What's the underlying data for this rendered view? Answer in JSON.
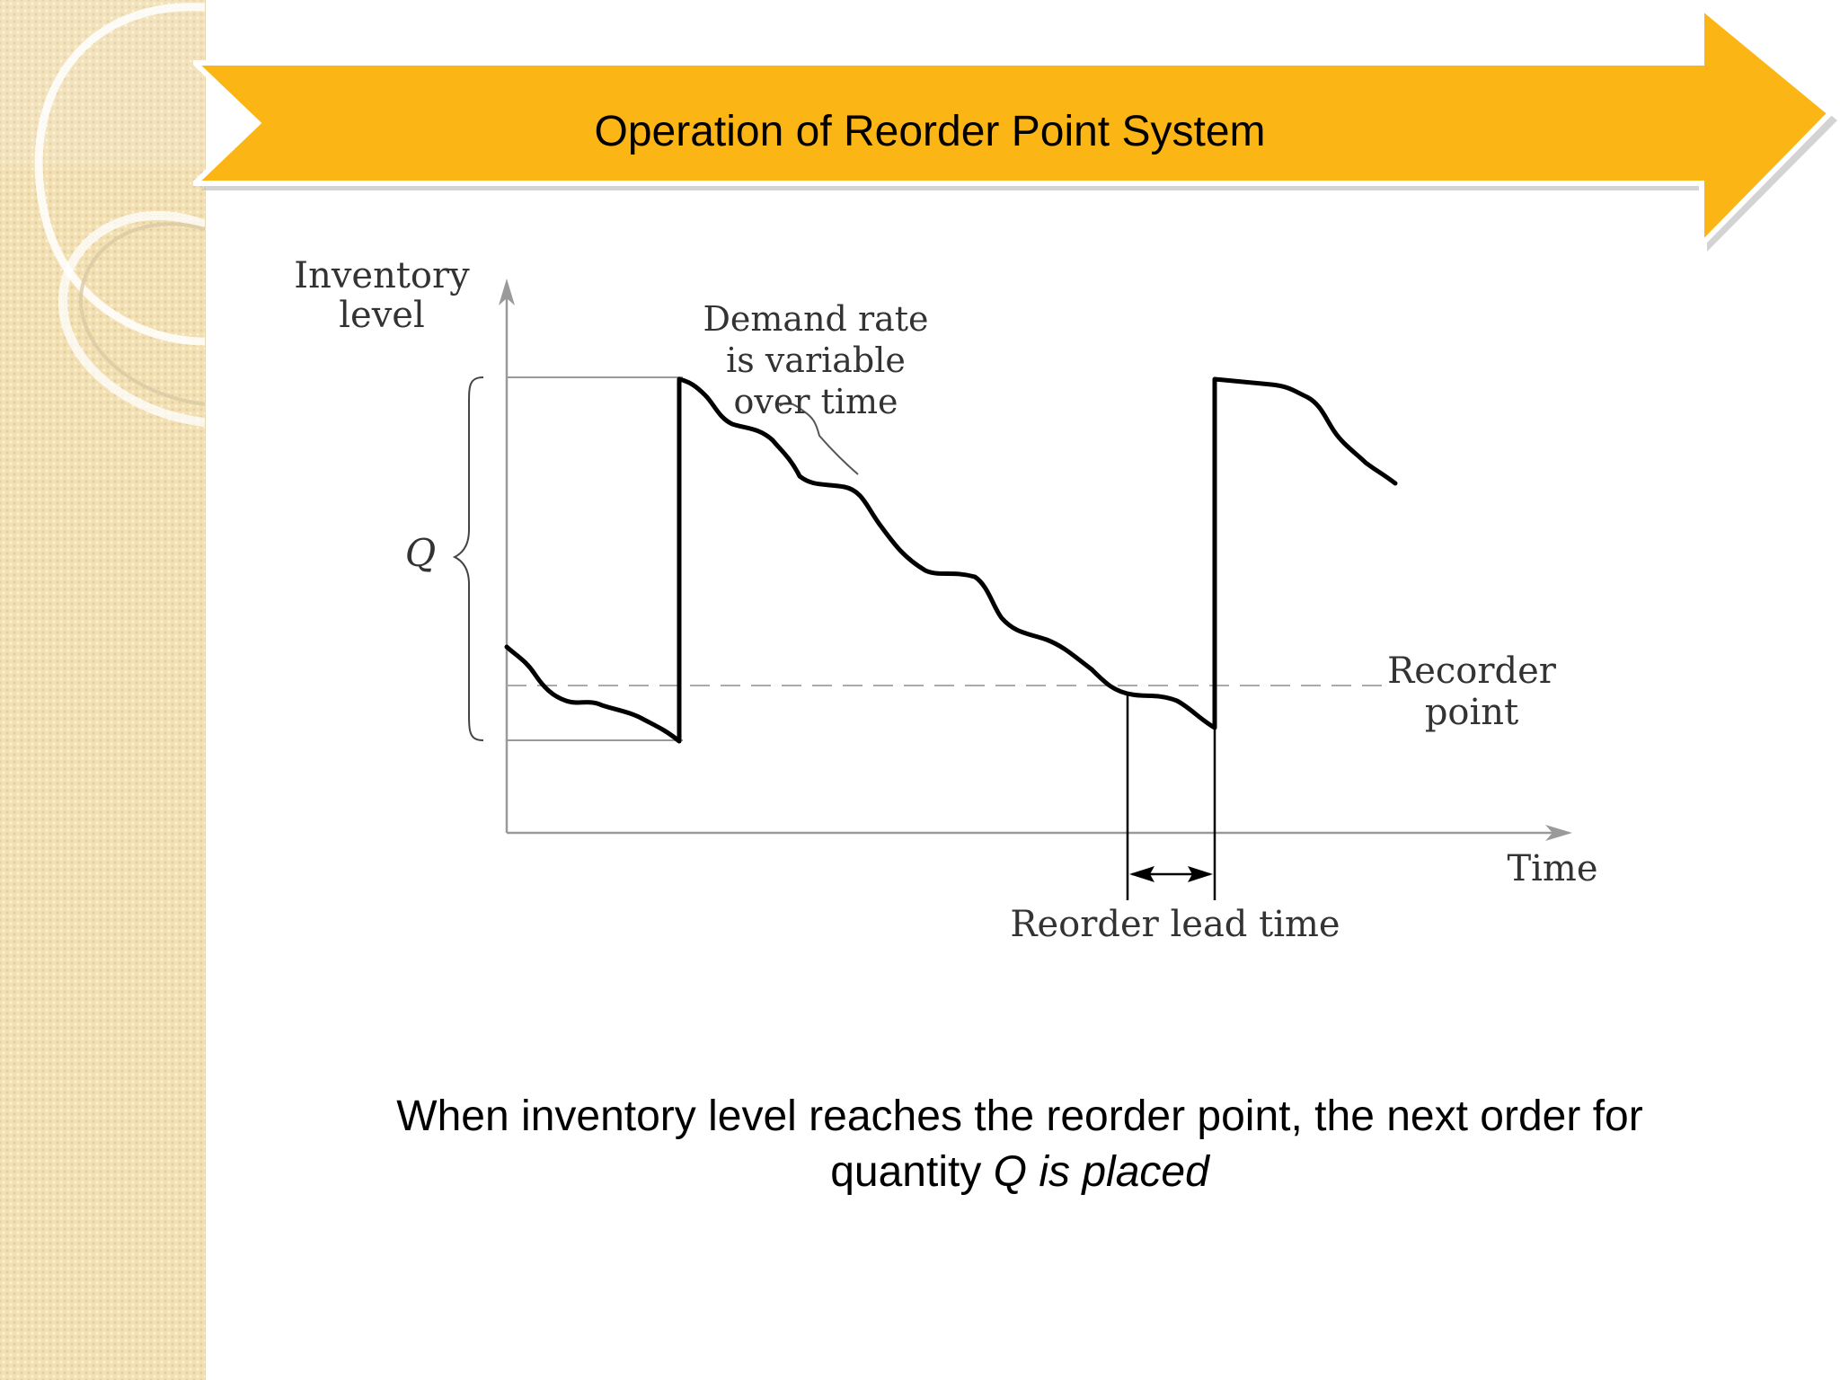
{
  "slide": {
    "title": "Operation of Reorder Point System",
    "caption_line1": "When inventory level reaches the reorder point, the next order for",
    "caption_line2_plain": "quantity ",
    "caption_line2_italic": "Q is placed"
  },
  "diagram": {
    "y_axis_label_line1": "Inventory",
    "y_axis_label_line2": "level",
    "x_axis_label": "Time",
    "q_label": "Q",
    "demand_note_line1": "Demand rate",
    "demand_note_line2": "is variable",
    "demand_note_line3": "over time",
    "reorder_point_line1": "Recorder",
    "reorder_point_line2": "point",
    "lead_time_label": "Reorder lead time"
  },
  "colors": {
    "banner": "#fbb514",
    "banner_shadow": "#c8c8c8",
    "sidebar": "#f2e0b3",
    "ink": "#000000",
    "axis": "#9a9a9a"
  }
}
